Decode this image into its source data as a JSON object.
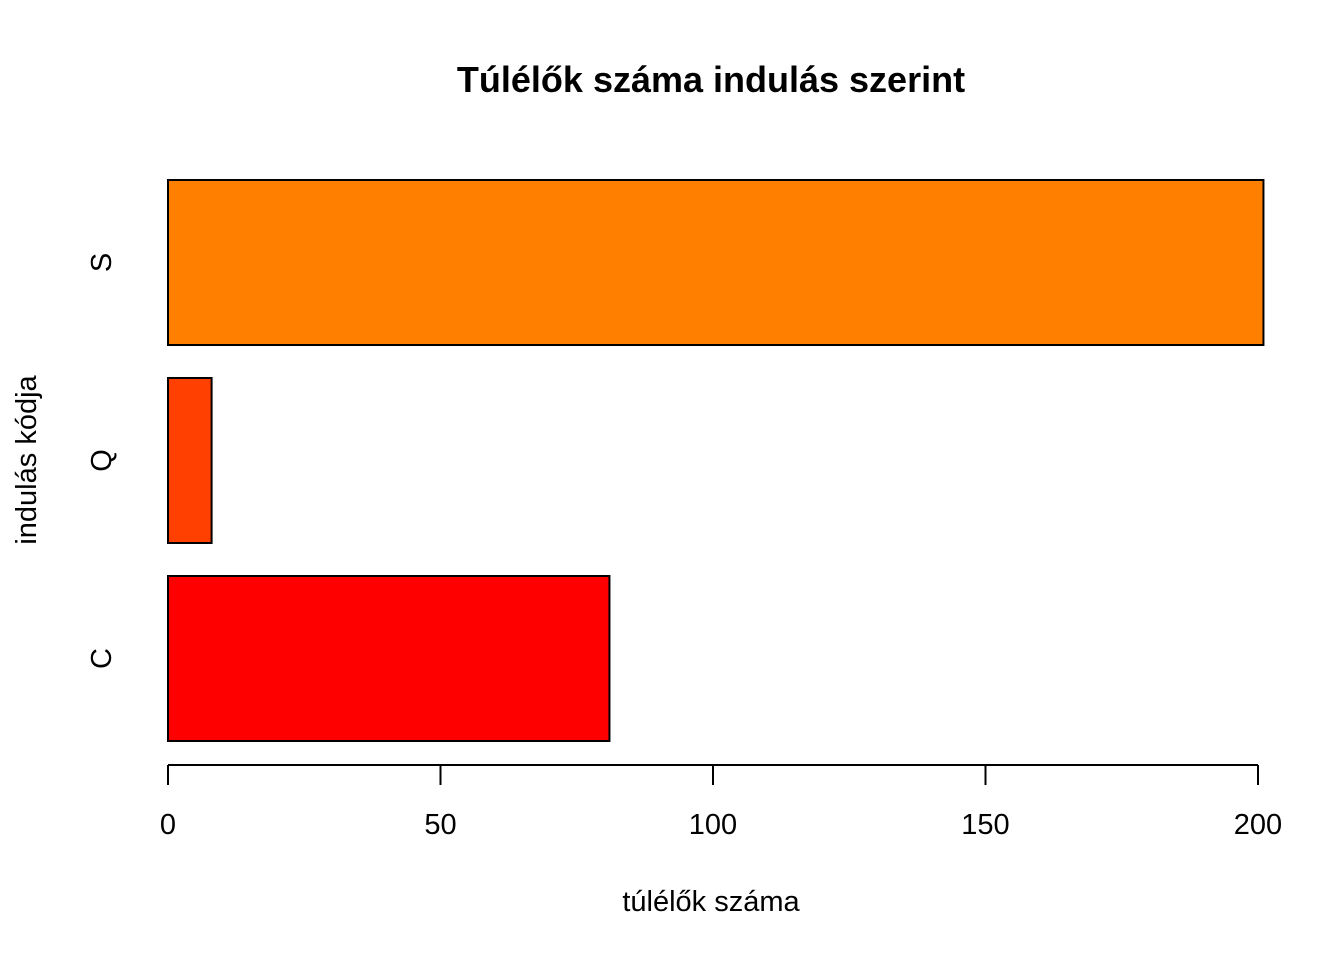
{
  "chart_data": {
    "type": "bar",
    "orientation": "horizontal",
    "title": "Túlélők száma indulás szerint",
    "xlabel": "túlélők száma",
    "ylabel": "indulás kódja",
    "categories": [
      "C",
      "Q",
      "S"
    ],
    "values": [
      81,
      8,
      201
    ],
    "colors": [
      "#FF0000",
      "#FF4000",
      "#FF8000"
    ],
    "xlim": [
      0,
      200
    ],
    "xticks": [
      0,
      50,
      100,
      150,
      200
    ],
    "grid": false,
    "legend": "none"
  }
}
